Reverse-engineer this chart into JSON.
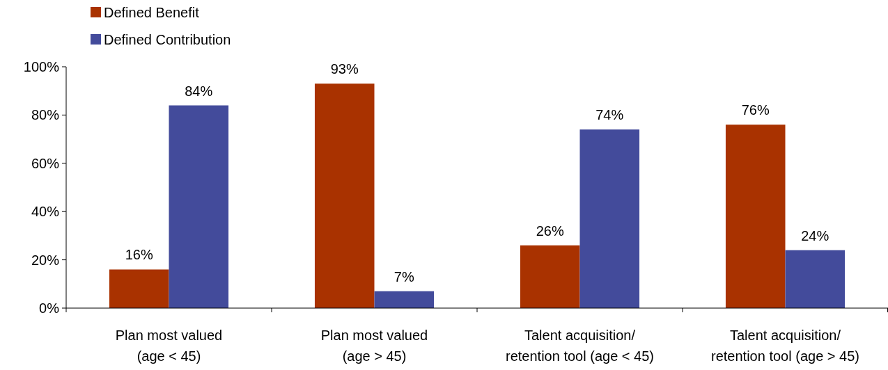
{
  "chart_data": {
    "type": "bar",
    "categories": [
      "Plan most valued\n(age < 45)",
      "Plan most valued\n(age > 45)",
      "Talent acquisition/\nretention tool (age < 45)",
      "Talent acquisition/\nretention tool (age > 45)"
    ],
    "series": [
      {
        "name": "Defined Benefit",
        "color": "#a93200",
        "values": [
          16,
          93,
          26,
          76
        ],
        "value_labels": [
          "16%",
          "93%",
          "26%",
          "76%"
        ]
      },
      {
        "name": "Defined Contribution",
        "color": "#434b9b",
        "values": [
          84,
          7,
          74,
          24
        ],
        "value_labels": [
          "84%",
          "7%",
          "74%",
          "24%"
        ]
      }
    ],
    "ylim": [
      0,
      100
    ],
    "yticks": [
      {
        "value": 0,
        "label": "0%"
      },
      {
        "value": 20,
        "label": "20%"
      },
      {
        "value": 40,
        "label": "40%"
      },
      {
        "value": 60,
        "label": "60%"
      },
      {
        "value": 80,
        "label": "80%"
      },
      {
        "value": 100,
        "label": "100%"
      }
    ],
    "legend": "top left",
    "grid": false
  }
}
